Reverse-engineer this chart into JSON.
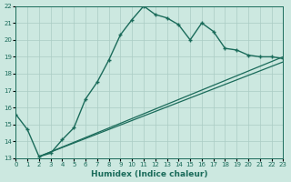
{
  "xlabel": "Humidex (Indice chaleur)",
  "bg_color": "#cce8e0",
  "grid_color": "#aaccc4",
  "line_color": "#1a6b5a",
  "xlim": [
    0,
    23
  ],
  "ylim": [
    13,
    22
  ],
  "xtick_labels": [
    "0",
    "1",
    "2",
    "3",
    "4",
    "5",
    "6",
    "7",
    "8",
    "9",
    "10",
    "11",
    "12",
    "13",
    "14",
    "15",
    "16",
    "17",
    "18",
    "19",
    "20",
    "21",
    "22",
    "23"
  ],
  "ytick_labels": [
    "13",
    "14",
    "15",
    "16",
    "17",
    "18",
    "19",
    "20",
    "21",
    "22"
  ],
  "curve_x": [
    0,
    1,
    2,
    3,
    4,
    5,
    6,
    7,
    8,
    9,
    10,
    11,
    12,
    13,
    14,
    15,
    16,
    17,
    18,
    19,
    20,
    21,
    22,
    23
  ],
  "curve_y": [
    15.6,
    14.7,
    13.1,
    13.3,
    14.1,
    14.8,
    16.5,
    17.5,
    18.8,
    20.3,
    21.2,
    22.0,
    21.5,
    21.3,
    20.9,
    20.0,
    21.0,
    20.5,
    19.5,
    19.4,
    19.1,
    19.0,
    19.0,
    18.9
  ],
  "line2_x": [
    2,
    23
  ],
  "line2_y": [
    13.1,
    19.0
  ],
  "line3_x": [
    2,
    23
  ],
  "line3_y": [
    13.1,
    18.7
  ],
  "marker_size": 3.0,
  "linewidth_curve": 1.0,
  "linewidth_straight": 0.9
}
